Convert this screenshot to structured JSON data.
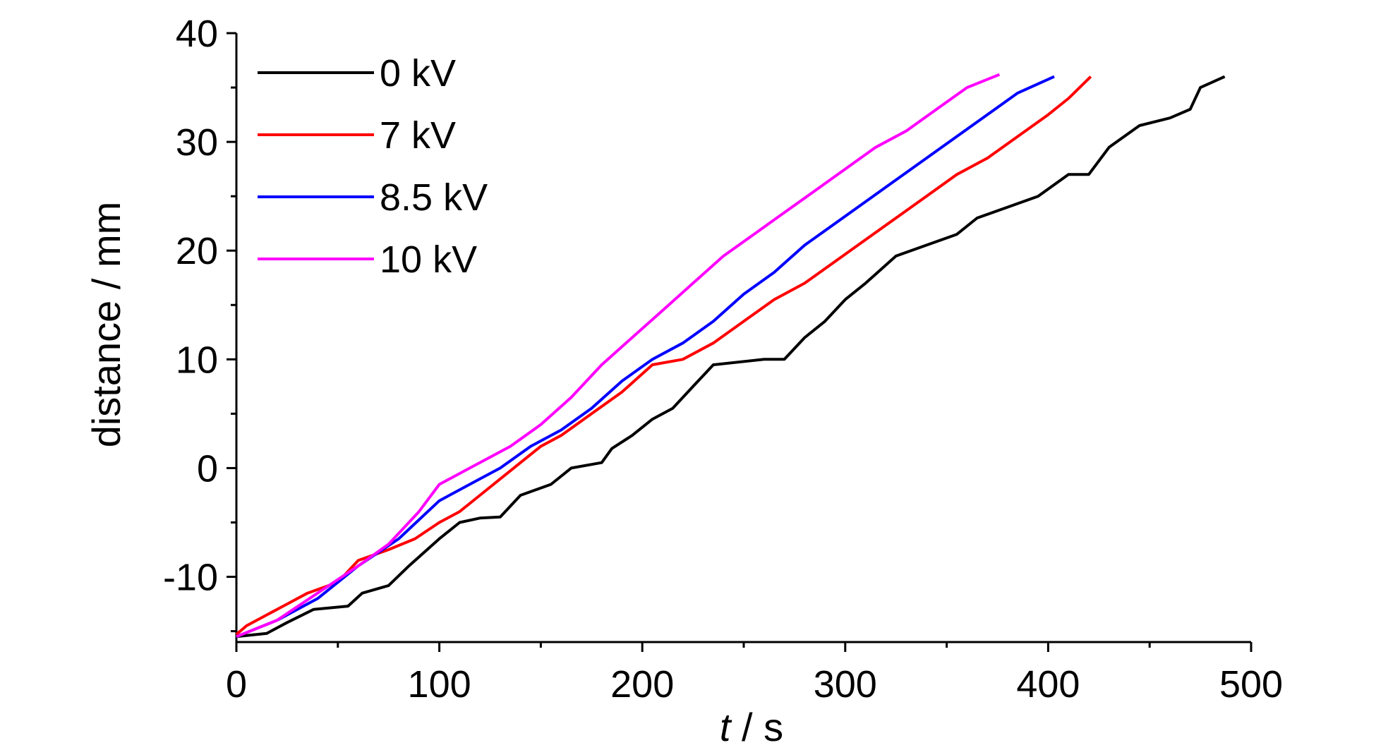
{
  "chart_data": {
    "type": "line",
    "title": "",
    "xlabel_italic": "t",
    "xlabel_rest": " / s",
    "ylabel": "distance / mm",
    "xlim": [
      0,
      500
    ],
    "ylim": [
      -16,
      40
    ],
    "xticks": [
      0,
      100,
      200,
      300,
      400,
      500
    ],
    "xtick_labels": [
      "0",
      "100",
      "200",
      "300",
      "400",
      "500"
    ],
    "yticks": [
      -10,
      0,
      10,
      20,
      30,
      40
    ],
    "ytick_labels": [
      "-10",
      "0",
      "10",
      "20",
      "30",
      "40"
    ],
    "grid": false,
    "legend_position": "top-left",
    "series": [
      {
        "name": "0 kV",
        "color": "#000000",
        "points": [
          [
            0,
            -15.5
          ],
          [
            15,
            -15.2
          ],
          [
            25,
            -14.2
          ],
          [
            38,
            -13.0
          ],
          [
            55,
            -12.7
          ],
          [
            62,
            -11.5
          ],
          [
            75,
            -10.8
          ],
          [
            85,
            -9.0
          ],
          [
            100,
            -6.5
          ],
          [
            110,
            -5.0
          ],
          [
            120,
            -4.6
          ],
          [
            130,
            -4.5
          ],
          [
            140,
            -2.5
          ],
          [
            155,
            -1.5
          ],
          [
            165,
            0.0
          ],
          [
            180,
            0.5
          ],
          [
            185,
            1.8
          ],
          [
            195,
            3.0
          ],
          [
            205,
            4.5
          ],
          [
            215,
            5.5
          ],
          [
            225,
            7.5
          ],
          [
            235,
            9.5
          ],
          [
            260,
            10.0
          ],
          [
            270,
            10.0
          ],
          [
            280,
            12.0
          ],
          [
            290,
            13.5
          ],
          [
            300,
            15.5
          ],
          [
            310,
            17.0
          ],
          [
            325,
            19.5
          ],
          [
            340,
            20.5
          ],
          [
            355,
            21.5
          ],
          [
            365,
            23.0
          ],
          [
            380,
            24.0
          ],
          [
            395,
            25.0
          ],
          [
            410,
            27.0
          ],
          [
            420,
            27.0
          ],
          [
            430,
            29.5
          ],
          [
            445,
            31.5
          ],
          [
            460,
            32.2
          ],
          [
            470,
            33.0
          ],
          [
            475,
            35.0
          ],
          [
            487,
            36.0
          ]
        ]
      },
      {
        "name": "7 kV",
        "color": "#ff0000",
        "points": [
          [
            0,
            -15.3
          ],
          [
            5,
            -14.5
          ],
          [
            15,
            -13.5
          ],
          [
            25,
            -12.5
          ],
          [
            35,
            -11.5
          ],
          [
            50,
            -10.5
          ],
          [
            60,
            -8.5
          ],
          [
            75,
            -7.5
          ],
          [
            88,
            -6.5
          ],
          [
            100,
            -5.0
          ],
          [
            110,
            -4.0
          ],
          [
            120,
            -2.5
          ],
          [
            130,
            -1.0
          ],
          [
            140,
            0.5
          ],
          [
            150,
            2.0
          ],
          [
            160,
            3.0
          ],
          [
            175,
            5.0
          ],
          [
            190,
            7.0
          ],
          [
            205,
            9.5
          ],
          [
            220,
            10.0
          ],
          [
            235,
            11.5
          ],
          [
            250,
            13.5
          ],
          [
            265,
            15.5
          ],
          [
            280,
            17.0
          ],
          [
            295,
            19.0
          ],
          [
            310,
            21.0
          ],
          [
            325,
            23.0
          ],
          [
            340,
            25.0
          ],
          [
            355,
            27.0
          ],
          [
            370,
            28.5
          ],
          [
            385,
            30.5
          ],
          [
            400,
            32.5
          ],
          [
            410,
            34.0
          ],
          [
            421,
            36.0
          ]
        ]
      },
      {
        "name": "8.5 kV",
        "color": "#0000ff",
        "points": [
          [
            0,
            -15.5
          ],
          [
            20,
            -14.0
          ],
          [
            40,
            -12.0
          ],
          [
            60,
            -9.0
          ],
          [
            80,
            -6.5
          ],
          [
            100,
            -3.0
          ],
          [
            120,
            -1.0
          ],
          [
            130,
            0.0
          ],
          [
            145,
            2.0
          ],
          [
            160,
            3.5
          ],
          [
            175,
            5.5
          ],
          [
            190,
            8.0
          ],
          [
            205,
            10.0
          ],
          [
            220,
            11.5
          ],
          [
            235,
            13.5
          ],
          [
            250,
            16.0
          ],
          [
            265,
            18.0
          ],
          [
            280,
            20.5
          ],
          [
            295,
            22.5
          ],
          [
            310,
            24.5
          ],
          [
            325,
            26.5
          ],
          [
            340,
            28.5
          ],
          [
            355,
            30.5
          ],
          [
            370,
            32.5
          ],
          [
            385,
            34.5
          ],
          [
            403,
            36.0
          ]
        ]
      },
      {
        "name": "10 kV",
        "color": "#ff00ff",
        "points": [
          [
            0,
            -15.5
          ],
          [
            20,
            -14.0
          ],
          [
            40,
            -11.5
          ],
          [
            60,
            -9.0
          ],
          [
            75,
            -7.0
          ],
          [
            90,
            -4.0
          ],
          [
            100,
            -1.5
          ],
          [
            115,
            0.0
          ],
          [
            125,
            1.0
          ],
          [
            135,
            2.0
          ],
          [
            150,
            4.0
          ],
          [
            165,
            6.5
          ],
          [
            180,
            9.5
          ],
          [
            195,
            12.0
          ],
          [
            210,
            14.5
          ],
          [
            225,
            17.0
          ],
          [
            240,
            19.5
          ],
          [
            255,
            21.5
          ],
          [
            270,
            23.5
          ],
          [
            285,
            25.5
          ],
          [
            300,
            27.5
          ],
          [
            315,
            29.5
          ],
          [
            330,
            31.0
          ],
          [
            345,
            33.0
          ],
          [
            360,
            35.0
          ],
          [
            376,
            36.2
          ]
        ]
      }
    ]
  }
}
